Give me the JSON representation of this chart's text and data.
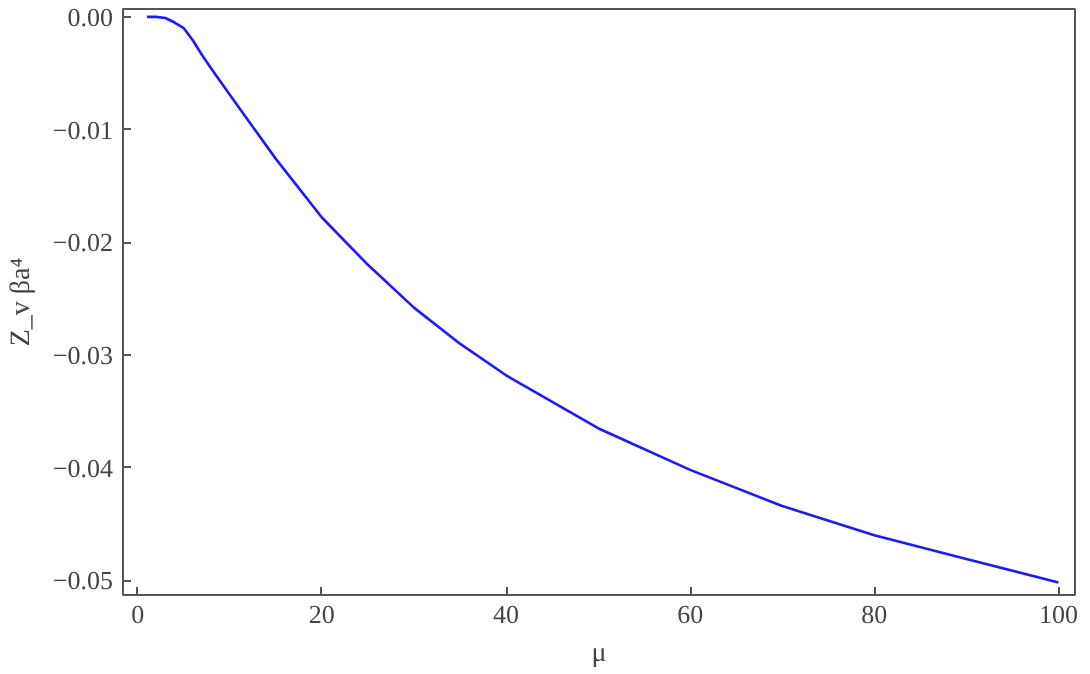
{
  "chart_data": {
    "type": "line",
    "xlabel": "μ",
    "ylabel": "Z_v βa⁴",
    "x": [
      1,
      2,
      3,
      4,
      5,
      6,
      7,
      8,
      10,
      12,
      15,
      20,
      25,
      30,
      35,
      40,
      50,
      60,
      70,
      80,
      90,
      100
    ],
    "series": [
      {
        "color": "#1a1aff",
        "values": [
          0,
          0,
          -0.0001,
          -0.0005,
          -0.001,
          -0.0021,
          -0.0034,
          -0.0046,
          -0.0069,
          -0.0092,
          -0.0126,
          -0.0178,
          -0.022,
          -0.0258,
          -0.029,
          -0.0318,
          -0.0365,
          -0.0402,
          -0.0434,
          -0.046,
          -0.0481,
          -0.0502
        ]
      }
    ],
    "xlim": [
      -1.6,
      101.8
    ],
    "ylim": [
      -0.0513,
      0.0007
    ],
    "xticks": [
      0,
      20,
      40,
      60,
      80,
      100
    ],
    "yticks": [
      {
        "value": 0,
        "label": "0.00"
      },
      {
        "value": -0.01,
        "label": "−0.01"
      },
      {
        "value": -0.02,
        "label": "−0.02"
      },
      {
        "value": -0.03,
        "label": "−0.03"
      },
      {
        "value": -0.04,
        "label": "−0.04"
      },
      {
        "value": -0.05,
        "label": "−0.05"
      }
    ],
    "grid": false,
    "marker": "none",
    "line_style": "solid"
  }
}
